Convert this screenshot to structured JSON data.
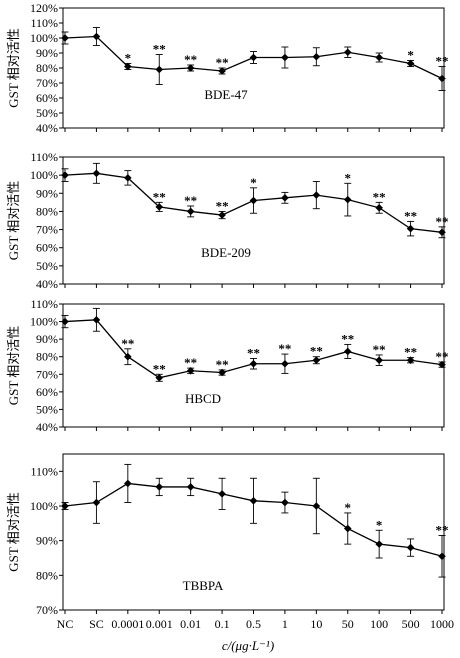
{
  "figure": {
    "x_categories": [
      "NC",
      "SC",
      "0.0001",
      "0.001",
      "0.01",
      "0.1",
      "0.5",
      "1",
      "10",
      "50",
      "100",
      "500",
      "1000"
    ],
    "xlabel": "c/(μg·L⁻¹)"
  },
  "chart_data": [
    {
      "type": "line",
      "title": "BDE-47",
      "ylabel": "GST 相对活性",
      "ylim": [
        40,
        120
      ],
      "yticks": [
        "40%",
        "50%",
        "60%",
        "70%",
        "80%",
        "90%",
        "100%",
        "110%",
        "120%"
      ],
      "categories": [
        "NC",
        "SC",
        "0.0001",
        "0.001",
        "0.01",
        "0.1",
        "0.5",
        "1",
        "10",
        "50",
        "100",
        "500",
        "1000"
      ],
      "values": [
        100,
        101,
        81,
        79,
        80,
        78,
        87,
        87,
        87.5,
        90.5,
        87,
        83,
        73
      ],
      "errors": [
        4,
        6,
        2,
        10,
        2,
        2,
        4,
        7,
        6,
        3.5,
        3,
        2,
        8
      ],
      "significance": [
        "",
        "",
        "*",
        "**",
        "**",
        "**",
        "",
        "",
        "",
        "",
        "",
        "*",
        "**"
      ],
      "grid": false
    },
    {
      "type": "line",
      "title": "BDE-209",
      "ylabel": "GST 相对活性",
      "ylim": [
        40,
        110
      ],
      "yticks": [
        "40%",
        "50%",
        "60%",
        "70%",
        "80%",
        "90%",
        "100%",
        "110%"
      ],
      "categories": [
        "NC",
        "SC",
        "0.0001",
        "0.001",
        "0.01",
        "0.1",
        "0.5",
        "1",
        "10",
        "50",
        "100",
        "500",
        "1000"
      ],
      "values": [
        100,
        101,
        98.5,
        82.5,
        80,
        78,
        86,
        87.5,
        89,
        86.5,
        82,
        70.5,
        68.5
      ],
      "errors": [
        3.5,
        5.5,
        4,
        2.5,
        3,
        2,
        7,
        3,
        7.5,
        9,
        3,
        4,
        3
      ],
      "significance": [
        "",
        "",
        "",
        "**",
        "**",
        "**",
        "*",
        "",
        "",
        "*",
        "**",
        "**",
        "**"
      ],
      "grid": false
    },
    {
      "type": "line",
      "title": "HBCD",
      "ylabel": "GST 相对活性",
      "ylim": [
        40,
        110
      ],
      "yticks": [
        "40%",
        "50%",
        "60%",
        "70%",
        "80%",
        "90%",
        "100%",
        "110%"
      ],
      "categories": [
        "NC",
        "SC",
        "0.0001",
        "0.001",
        "0.01",
        "0.1",
        "0.5",
        "1",
        "10",
        "50",
        "100",
        "500",
        "1000"
      ],
      "values": [
        100,
        101,
        80,
        68,
        72,
        71,
        76,
        76,
        78,
        83,
        78,
        78,
        75.5
      ],
      "errors": [
        3.5,
        6.5,
        4.5,
        2,
        1.5,
        1.5,
        3,
        5.5,
        2,
        4,
        3,
        1.5,
        1.5
      ],
      "significance": [
        "",
        "",
        "**",
        "**",
        "**",
        "**",
        "**",
        "**",
        "**",
        "**",
        "**",
        "**",
        "**"
      ],
      "grid": false
    },
    {
      "type": "line",
      "title": "TBBPA",
      "ylabel": "GST 相对活性",
      "ylim": [
        70,
        115
      ],
      "yticks": [
        "70%",
        "80%",
        "90%",
        "100%",
        "110%"
      ],
      "categories": [
        "NC",
        "SC",
        "0.0001",
        "0.001",
        "0.01",
        "0.1",
        "0.5",
        "1",
        "10",
        "50",
        "100",
        "500",
        "1000"
      ],
      "values": [
        100,
        101,
        106.5,
        105.5,
        105.5,
        103.5,
        101.5,
        101,
        100,
        93.5,
        89,
        88,
        85.5
      ],
      "errors": [
        1,
        6,
        5.5,
        2.5,
        2.5,
        4.5,
        6.5,
        3,
        8,
        4.5,
        4,
        2.5,
        6
      ],
      "significance": [
        "",
        "",
        "",
        "",
        "",
        "",
        "",
        "",
        "",
        "*",
        "*",
        "",
        "**"
      ],
      "grid": false
    }
  ]
}
